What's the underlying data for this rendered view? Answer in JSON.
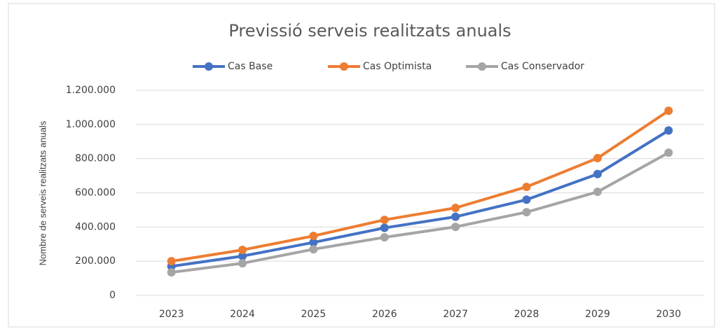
{
  "chart_data": {
    "type": "line",
    "title": "Previssió serveis realitzats anuals",
    "ylabel": "Nombre de serveis realitzats anuals",
    "categories": [
      "2023",
      "2024",
      "2025",
      "2026",
      "2027",
      "2028",
      "2029",
      "2030"
    ],
    "series": [
      {
        "name": "Cas Base",
        "color": "#4472c4",
        "values": [
          170000,
          230000,
          310000,
          395000,
          460000,
          560000,
          710000,
          965000
        ]
      },
      {
        "name": "Cas Optimista",
        "color": "#ed7d31",
        "values": [
          200000,
          266000,
          348000,
          442000,
          512000,
          635000,
          803000,
          1080000
        ]
      },
      {
        "name": "Cas Conservador",
        "color": "#a5a5a5",
        "values": [
          135000,
          188000,
          270000,
          340000,
          401000,
          487000,
          606000,
          835000
        ]
      }
    ],
    "ylim": [
      0,
      1200000
    ],
    "yticks": [
      0,
      {
        "value": 200000,
        "label": "200.000"
      },
      {
        "value": 400000,
        "label": "400.000"
      },
      {
        "value": 600000,
        "label": "600.000"
      },
      {
        "value": 800000,
        "label": "800.000"
      },
      {
        "value": 1000000,
        "label": "1.000.000"
      },
      {
        "value": 1200000,
        "label": "1.200.000"
      }
    ],
    "grid": true,
    "legend": "top"
  }
}
